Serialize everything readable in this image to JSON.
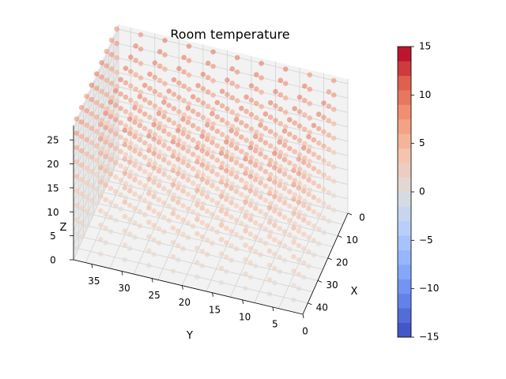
{
  "chart_data": {
    "type": "scatter3d",
    "title": "Room temperature",
    "xlabel": "X",
    "ylabel": "Y",
    "zlabel": "Z",
    "xlim": [
      0,
      45
    ],
    "ylim": [
      0,
      38
    ],
    "zlim": [
      0,
      28
    ],
    "x_ticks": [
      "0",
      "10",
      "20",
      "30",
      "40"
    ],
    "y_ticks": [
      "0",
      "5",
      "10",
      "15",
      "20",
      "25",
      "30",
      "35"
    ],
    "z_ticks": [
      "0",
      "5",
      "10",
      "15",
      "20",
      "25"
    ],
    "grid_x": [
      0,
      5,
      10,
      15,
      20,
      25,
      30,
      35,
      40,
      45
    ],
    "grid_y": [
      0,
      4,
      8,
      12,
      16,
      20,
      24,
      28,
      32,
      36
    ],
    "grid_z": [
      0,
      3,
      6,
      9,
      12,
      15,
      18,
      21,
      24,
      27
    ],
    "temperature_model": "linear gradient: approx 0 at z=0 rising to approx 9 at z=27, slightly warmer toward center",
    "colormap": "coolwarm",
    "colorbar": {
      "min": -15,
      "max": 15,
      "levels": 20,
      "tick_labels": [
        "15",
        "10",
        "5",
        "0",
        "−5",
        "−10",
        "−15"
      ],
      "tick_values": [
        15,
        10,
        5,
        0,
        -5,
        -10,
        -15
      ]
    },
    "grid": true,
    "marker_alpha": 0.6
  }
}
